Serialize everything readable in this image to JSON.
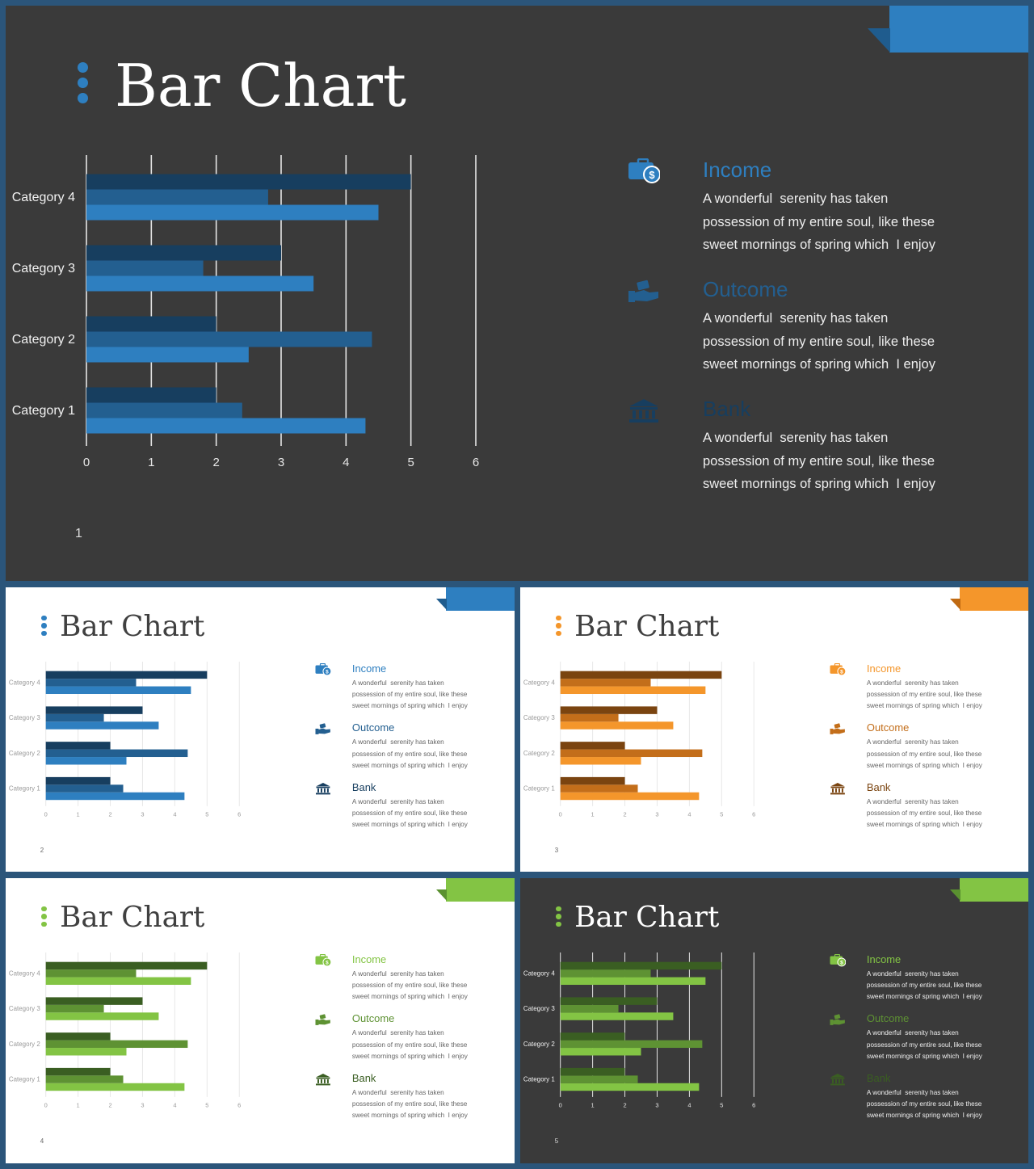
{
  "theme": {
    "frame": "#2b557a",
    "dark_background": "#3a3a3a",
    "light_background": "#ffffff",
    "gridline_dark": "#e6e6e6",
    "gridline_light": "#e8e8e8",
    "text_dark_bg": "#ffffff",
    "text_light_bg": "#404040",
    "desc_dark_bg": "#eeeeee",
    "desc_light_bg": "#666666"
  },
  "chart_data": [
    {
      "type": "bar",
      "orientation": "horizontal",
      "categories": [
        "Category 1",
        "Category 2",
        "Category 3",
        "Category 4"
      ],
      "series": [
        {
          "values": [
            4.3,
            2.5,
            3.5,
            4.5
          ],
          "color": "#2e7fc0"
        },
        {
          "values": [
            2.4,
            4.4,
            1.8,
            2.8
          ],
          "color": "#235f90"
        },
        {
          "values": [
            2,
            2,
            3,
            5
          ],
          "color": "#173e5f"
        }
      ],
      "xticks": [
        "0",
        "1",
        "2",
        "3",
        "4",
        "5",
        "6"
      ],
      "xlim": [
        0,
        6
      ],
      "grid": true
    },
    {
      "type": "bar",
      "orientation": "horizontal",
      "categories": [
        "Category 1",
        "Category 2",
        "Category 3",
        "Category 4"
      ],
      "series": [
        {
          "values": [
            4.3,
            2.5,
            3.5,
            4.5
          ],
          "color": "#2e7fc0"
        },
        {
          "values": [
            2.4,
            4.4,
            1.8,
            2.8
          ],
          "color": "#235f90"
        },
        {
          "values": [
            2,
            2,
            3,
            5
          ],
          "color": "#173e5f"
        }
      ],
      "xticks": [
        "0",
        "1",
        "2",
        "3",
        "4",
        "5",
        "6"
      ],
      "xlim": [
        0,
        6
      ],
      "grid": true
    },
    {
      "type": "bar",
      "orientation": "horizontal",
      "categories": [
        "Category 1",
        "Category 2",
        "Category 3",
        "Category 4"
      ],
      "series": [
        {
          "values": [
            4.3,
            2.5,
            3.5,
            4.5
          ],
          "color": "#f4962b"
        },
        {
          "values": [
            2.4,
            4.4,
            1.8,
            2.8
          ],
          "color": "#c36e1a"
        },
        {
          "values": [
            2,
            2,
            3,
            5
          ],
          "color": "#7a4410"
        }
      ],
      "xticks": [
        "0",
        "1",
        "2",
        "3",
        "4",
        "5",
        "6"
      ],
      "xlim": [
        0,
        6
      ],
      "grid": true
    },
    {
      "type": "bar",
      "orientation": "horizontal",
      "categories": [
        "Category 1",
        "Category 2",
        "Category 3",
        "Category 4"
      ],
      "series": [
        {
          "values": [
            4.3,
            2.5,
            3.5,
            4.5
          ],
          "color": "#83c444"
        },
        {
          "values": [
            2.4,
            4.4,
            1.8,
            2.8
          ],
          "color": "#5e9233"
        },
        {
          "values": [
            2,
            2,
            3,
            5
          ],
          "color": "#3a5e22"
        }
      ],
      "xticks": [
        "0",
        "1",
        "2",
        "3",
        "4",
        "5",
        "6"
      ],
      "xlim": [
        0,
        6
      ],
      "grid": true
    },
    {
      "type": "bar",
      "orientation": "horizontal",
      "categories": [
        "Category 1",
        "Category 2",
        "Category 3",
        "Category 4"
      ],
      "series": [
        {
          "values": [
            4.3,
            2.5,
            3.5,
            4.5
          ],
          "color": "#83c444"
        },
        {
          "values": [
            2.4,
            4.4,
            1.8,
            2.8
          ],
          "color": "#5e9233"
        },
        {
          "values": [
            2,
            2,
            3,
            5
          ],
          "color": "#3a5e22"
        }
      ],
      "xticks": [
        "0",
        "1",
        "2",
        "3",
        "4",
        "5",
        "6"
      ],
      "xlim": [
        0,
        6
      ],
      "grid": true
    }
  ],
  "slides": [
    {
      "title": "Bar Chart",
      "page": "1",
      "background": "dark",
      "accent": "#2e7fc0",
      "accent_dark": "#1f5c8e",
      "items": [
        {
          "heading": "Income",
          "icon": "money-bag-icon",
          "color": "#2e7fc0",
          "desc": [
            "A wonderful  serenity has taken",
            "possession of my entire soul, like these",
            "sweet mornings of spring which  I enjoy"
          ]
        },
        {
          "heading": "Outcome",
          "icon": "hand-money-icon",
          "color": "#235f90",
          "desc": [
            "A wonderful  serenity has taken",
            "possession of my entire soul, like these",
            "sweet mornings of spring which  I enjoy"
          ]
        },
        {
          "heading": "Bank",
          "icon": "bank-icon",
          "color": "#173e5f",
          "desc": [
            "A wonderful  serenity has taken",
            "possession of my entire soul, like these",
            "sweet mornings of spring which  I enjoy"
          ]
        }
      ]
    },
    {
      "title": "Bar Chart",
      "page": "2",
      "background": "light",
      "accent": "#2e7fc0",
      "accent_dark": "#1f5c8e",
      "items": [
        {
          "heading": "Income",
          "icon": "money-bag-icon",
          "color": "#2e7fc0",
          "desc": [
            "A wonderful  serenity has taken",
            "possession of my entire soul, like these",
            "sweet mornings of spring which  I enjoy"
          ]
        },
        {
          "heading": "Outcome",
          "icon": "hand-money-icon",
          "color": "#235f90",
          "desc": [
            "A wonderful  serenity has taken",
            "possession of my entire soul, like these",
            "sweet mornings of spring which  I enjoy"
          ]
        },
        {
          "heading": "Bank",
          "icon": "bank-icon",
          "color": "#173e5f",
          "desc": [
            "A wonderful  serenity has taken",
            "possession of my entire soul, like these",
            "sweet mornings of spring which  I enjoy"
          ]
        }
      ]
    },
    {
      "title": "Bar Chart",
      "page": "3",
      "background": "light",
      "accent": "#f4962b",
      "accent_dark": "#c06a12",
      "items": [
        {
          "heading": "Income",
          "icon": "money-bag-icon",
          "color": "#f4962b",
          "desc": [
            "A wonderful  serenity has taken",
            "possession of my entire soul, like these",
            "sweet mornings of spring which  I enjoy"
          ]
        },
        {
          "heading": "Outcome",
          "icon": "hand-money-icon",
          "color": "#c36e1a",
          "desc": [
            "A wonderful  serenity has taken",
            "possession of my entire soul, like these",
            "sweet mornings of spring which  I enjoy"
          ]
        },
        {
          "heading": "Bank",
          "icon": "bank-icon",
          "color": "#7a4410",
          "desc": [
            "A wonderful  serenity has taken",
            "possession of my entire soul, like these",
            "sweet mornings of spring which  I enjoy"
          ]
        }
      ]
    },
    {
      "title": "Bar Chart",
      "page": "4",
      "background": "light",
      "accent": "#83c444",
      "accent_dark": "#5a9130",
      "items": [
        {
          "heading": "Income",
          "icon": "money-bag-icon",
          "color": "#83c444",
          "desc": [
            "A wonderful  serenity has taken",
            "possession of my entire soul, like these",
            "sweet mornings of spring which  I enjoy"
          ]
        },
        {
          "heading": "Outcome",
          "icon": "hand-money-icon",
          "color": "#5e9233",
          "desc": [
            "A wonderful  serenity has taken",
            "possession of my entire soul, like these",
            "sweet mornings of spring which  I enjoy"
          ]
        },
        {
          "heading": "Bank",
          "icon": "bank-icon",
          "color": "#3a5e22",
          "desc": [
            "A wonderful  serenity has taken",
            "possession of my entire soul, like these",
            "sweet mornings of spring which  I enjoy"
          ]
        }
      ]
    },
    {
      "title": "Bar Chart",
      "page": "5",
      "background": "dark",
      "accent": "#83c444",
      "accent_dark": "#5a9130",
      "items": [
        {
          "heading": "Income",
          "icon": "money-bag-icon",
          "color": "#83c444",
          "desc": [
            "A wonderful  serenity has taken",
            "possession of my entire soul, like these",
            "sweet mornings of spring which  I enjoy"
          ]
        },
        {
          "heading": "Outcome",
          "icon": "hand-money-icon",
          "color": "#5e9233",
          "desc": [
            "A wonderful  serenity has taken",
            "possession of my entire soul, like these",
            "sweet mornings of spring which  I enjoy"
          ]
        },
        {
          "heading": "Bank",
          "icon": "bank-icon",
          "color": "#3a5e22",
          "desc": [
            "A wonderful  serenity has taken",
            "possession of my entire soul, like these",
            "sweet mornings of spring which  I enjoy"
          ]
        }
      ]
    }
  ]
}
